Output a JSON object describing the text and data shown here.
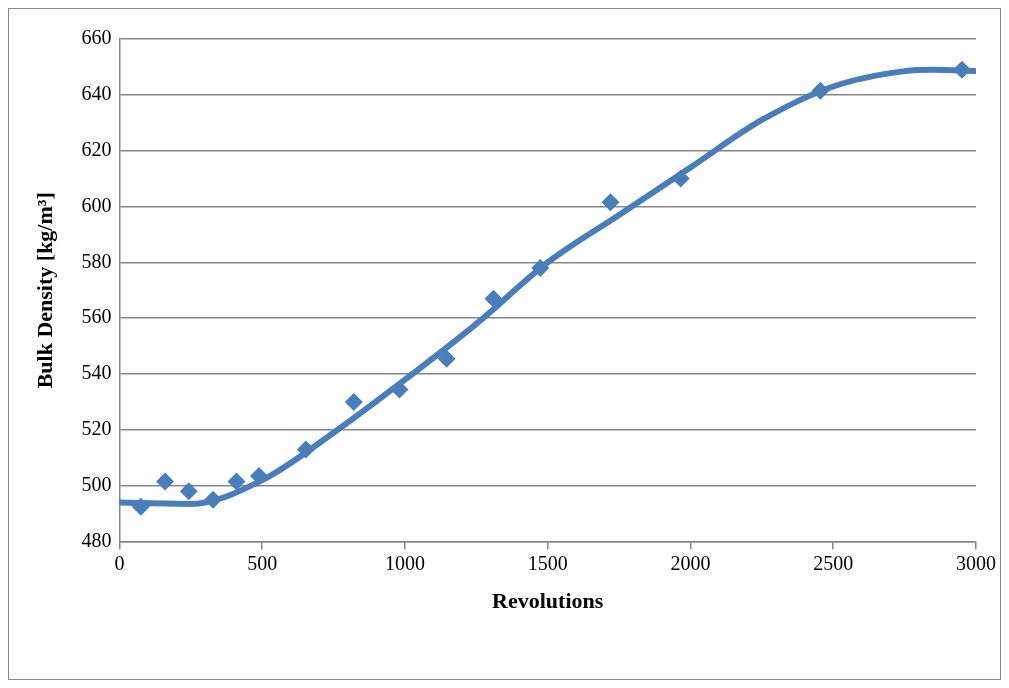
{
  "chart_data": {
    "type": "scatter",
    "xlabel": "Revolutions",
    "ylabel": "Bulk Density [kg/m³]",
    "xlim": [
      0,
      3000
    ],
    "xticks": [
      0,
      500,
      1000,
      1500,
      2000,
      2500,
      3000
    ],
    "ylim": [
      480,
      660
    ],
    "yticks": [
      480,
      500,
      520,
      540,
      560,
      580,
      600,
      620,
      640,
      660
    ],
    "grid": "y",
    "legend": false,
    "series": [
      {
        "marker": "diamond",
        "color": "#4a7ebb",
        "x": [
          75,
          160,
          243,
          328,
          410,
          489,
          653,
          821,
          981,
          1146,
          1310,
          1474,
          1720,
          1966,
          2455,
          2951
        ],
        "values": [
          492.5,
          501.5,
          498,
          495,
          501.5,
          503.5,
          513,
          530,
          534.5,
          545.5,
          567,
          578,
          601.5,
          610,
          641.5,
          649
        ]
      },
      {
        "type": "line",
        "marker": "none",
        "line_style": "solid",
        "color": "#4a7ebb",
        "x": [
          0,
          250,
          500,
          750,
          1000,
          1250,
          1500,
          1750,
          2000,
          2250,
          2500,
          2750,
          2850,
          3000
        ],
        "values": [
          494,
          493.5,
          502,
          519,
          538,
          558,
          580,
          597,
          614,
          631,
          643,
          648.5,
          649,
          648.5
        ]
      }
    ]
  }
}
